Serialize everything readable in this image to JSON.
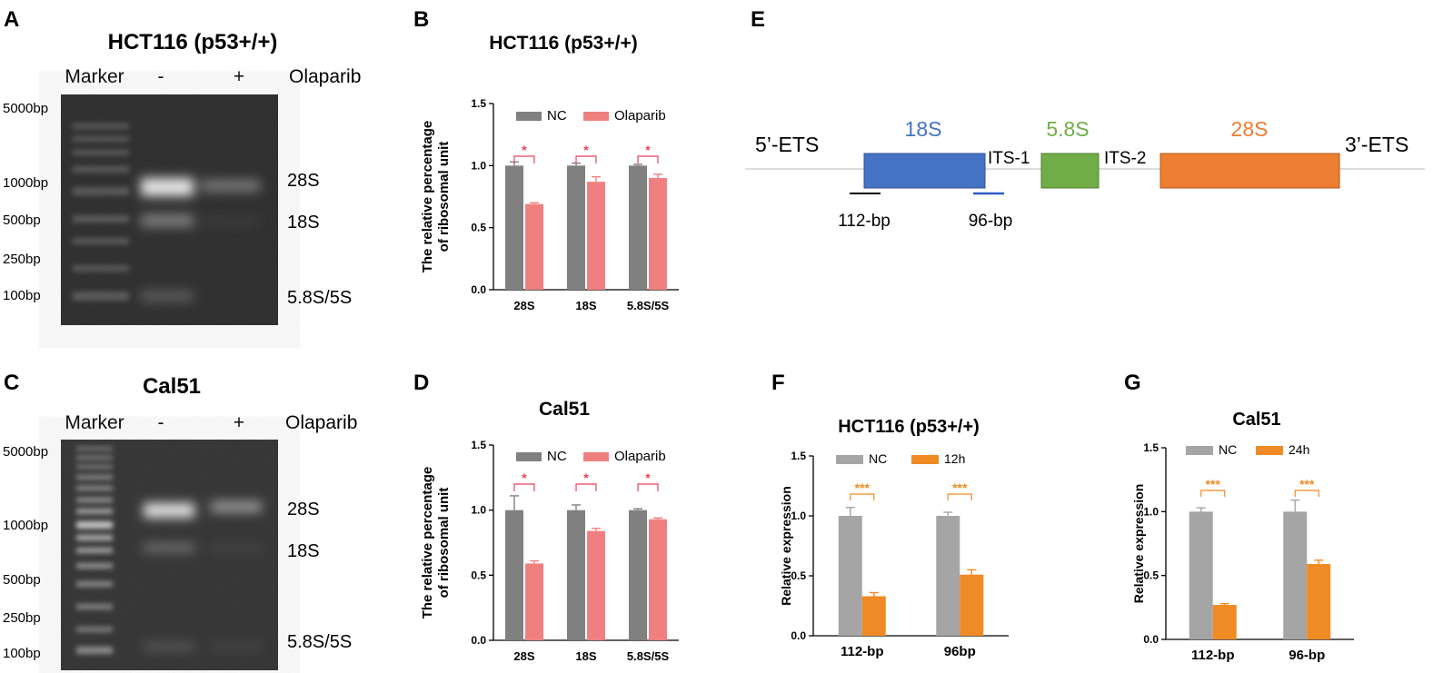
{
  "panel_letters": [
    "A",
    "B",
    "C",
    "D",
    "E",
    "F",
    "G"
  ],
  "gelA": {
    "title": "HCT116 (p53+/+)",
    "header": {
      "marker": "Marker",
      "minus": "-",
      "plus": "+",
      "drug": "Olaparib"
    },
    "ladder": [
      "5000bp",
      "1000bp",
      "500bp",
      "250bp",
      "100bp"
    ],
    "band_labels": [
      "28S",
      "18S",
      "5.8S/5S"
    ]
  },
  "gelC": {
    "title": "Cal51",
    "header": {
      "marker": "Marker",
      "minus": "-",
      "plus": "+",
      "drug": "Olaparib"
    },
    "ladder": [
      "5000bp",
      "1000bp",
      "500bp",
      "250bp",
      "100bp"
    ],
    "band_labels": [
      "28S",
      "18S",
      "5.8S/5S"
    ]
  },
  "diagramE": {
    "labels": {
      "ets5": "5’-ETS",
      "ets3": "3’-ETS",
      "s18": "18S",
      "s58": "5.8S",
      "s28": "28S",
      "its1": "ITS-1",
      "its2": "ITS-2",
      "p112": "112-bp",
      "p96": "96-bp"
    },
    "colors": {
      "s18": "#4472c4",
      "s58": "#70ad47",
      "s28": "#ed7d31"
    }
  },
  "chart_data": [
    {
      "panel": "B",
      "type": "bar",
      "title": "HCT116 (p53+/+)",
      "ylabel": "The relative percentage of ribosomal unit",
      "ylabel_lines": [
        "The relative percentage",
        "of ribosomal  unit"
      ],
      "xlabel": "",
      "ylim": [
        0,
        1.5
      ],
      "yticks": [
        "0.0",
        "0.5",
        "1.0",
        "1.5"
      ],
      "categories": [
        "28S",
        "18S",
        "5.8S/5S"
      ],
      "series": [
        {
          "name": "NC",
          "color": "#808080",
          "values": [
            1.0,
            1.0,
            1.0
          ],
          "errors": [
            0.03,
            0.02,
            0.01
          ]
        },
        {
          "name": "Olaparib",
          "color": "#f08080",
          "values": [
            0.69,
            0.87,
            0.9
          ],
          "errors": [
            0.01,
            0.04,
            0.03
          ]
        }
      ],
      "significance": [
        "*",
        "*",
        "*"
      ],
      "sig_color": "#e8425a",
      "legend": "top"
    },
    {
      "panel": "D",
      "type": "bar",
      "title": "Cal51",
      "ylabel": "The relative percentage of ribosomal unit",
      "ylabel_lines": [
        "The relative percentage",
        "of ribosomal  unit"
      ],
      "xlabel": "",
      "ylim": [
        0,
        1.5
      ],
      "yticks": [
        "0.0",
        "0.5",
        "1.0",
        "1.5"
      ],
      "categories": [
        "28S",
        "18S",
        "5.8S/5S"
      ],
      "series": [
        {
          "name": "NC",
          "color": "#808080",
          "values": [
            1.0,
            1.0,
            1.0
          ],
          "errors": [
            0.11,
            0.04,
            0.01
          ]
        },
        {
          "name": "Olaparib",
          "color": "#f08080",
          "values": [
            0.59,
            0.84,
            0.93
          ],
          "errors": [
            0.02,
            0.02,
            0.01
          ]
        }
      ],
      "significance": [
        "*",
        "*",
        "*"
      ],
      "sig_color": "#e8425a",
      "legend": "top"
    },
    {
      "panel": "F",
      "type": "bar",
      "title": "HCT116 (p53+/+)",
      "ylabel": "Relative expression",
      "ylabel_lines": [
        "Relative expression"
      ],
      "xlabel": "",
      "ylim": [
        0,
        1.5
      ],
      "yticks": [
        "0.0",
        "0.5",
        "1.0",
        "1.5"
      ],
      "categories": [
        "112-bp",
        "96bp"
      ],
      "series": [
        {
          "name": "NC",
          "color": "#a5a5a5",
          "values": [
            1.0,
            1.0
          ],
          "errors": [
            0.07,
            0.03
          ]
        },
        {
          "name": "12h",
          "color": "#f08a24",
          "values": [
            0.33,
            0.51
          ],
          "errors": [
            0.03,
            0.04
          ]
        }
      ],
      "significance": [
        "***",
        "***"
      ],
      "sig_color": "#f08a24",
      "legend": "top"
    },
    {
      "panel": "G",
      "type": "bar",
      "title": "Cal51",
      "ylabel": "Relative expression",
      "ylabel_lines": [
        "Relative expression"
      ],
      "xlabel": "",
      "ylim": [
        0,
        1.5
      ],
      "yticks": [
        "0.0",
        "0.5",
        "1.0",
        "1.5"
      ],
      "categories": [
        "112-bp",
        "96-bp"
      ],
      "series": [
        {
          "name": "NC",
          "color": "#a5a5a5",
          "values": [
            1.0,
            1.0
          ],
          "errors": [
            0.03,
            0.09
          ]
        },
        {
          "name": "24h",
          "color": "#f08a24",
          "values": [
            0.27,
            0.59
          ],
          "errors": [
            0.01,
            0.03
          ]
        }
      ],
      "significance": [
        "***",
        "***"
      ],
      "sig_color": "#f08a24",
      "legend": "top"
    }
  ]
}
